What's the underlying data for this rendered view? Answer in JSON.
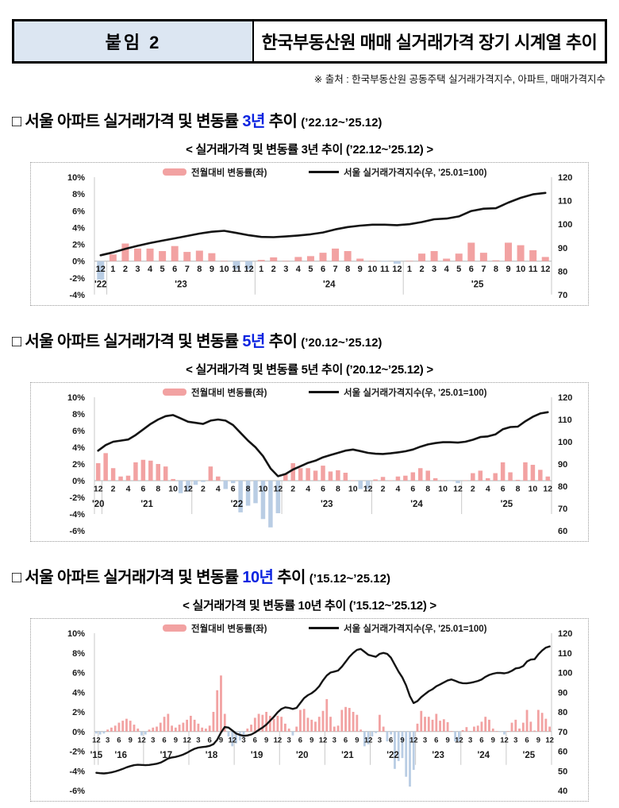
{
  "header": {
    "tag": "붙임 2",
    "title": "한국부동산원 매매 실거래가격 장기 시계열 추이"
  },
  "source_note": "※ 출처 : 한국부동산원 공동주택 실거래가격지수, 아파트, 매매가격지수",
  "colors": {
    "bar_positive": "#f2a2a2",
    "bar_negative": "#b9cde4",
    "line": "#141414",
    "highlight_blue": "#0b23e0",
    "header_cell_bg": "#dce6f2",
    "axis_text": "#1a1a1a",
    "grid": "#c9c9c9",
    "zero_line": "#b3b3b3"
  },
  "legend": {
    "bar_label": "전월대비 변동률(좌)",
    "line_label": "서울 실거래가격지수(우, '25.01=100)"
  },
  "sections": [
    {
      "heading": {
        "prefix": "□ 서울 아파트 실거래가격 및 변동률 ",
        "highlight": "3년",
        "suffix": " 추이 ",
        "range": "(’22.12~’25.12)"
      },
      "chart_title": "< 실거래가격 및 변동률 3년 추이 (’22.12~’25.12) >"
    },
    {
      "heading": {
        "prefix": "□ 서울 아파트 실거래가격 및 변동률 ",
        "highlight": "5년",
        "suffix": " 추이 ",
        "range": "(’20.12~’25.12)"
      },
      "chart_title": "< 실거래가격 및 변동률 5년 추이 (’20.12~’25.12) >"
    },
    {
      "heading": {
        "prefix": "□ 서울 아파트 실거래가격 및 변동률 ",
        "highlight": "10년",
        "suffix": " 추이 ",
        "range": "(’15.12~’25.12)"
      },
      "chart_title": "< 실거래가격 및 변동률 10년 추이 (’15.12~’25.12) >"
    }
  ],
  "chart_data": [
    {
      "type": "bar",
      "subtype": "bar+line combo",
      "title": "< 실거래가격 및 변동률 3년 추이 (’22.12~’25.12) >",
      "x_label_step": 1,
      "x_months": [
        12,
        1,
        2,
        3,
        4,
        5,
        6,
        7,
        8,
        9,
        10,
        11,
        12,
        1,
        2,
        3,
        4,
        5,
        6,
        7,
        8,
        9,
        10,
        11,
        12,
        1,
        2,
        3,
        4,
        5,
        6,
        7,
        8,
        9,
        10,
        11,
        12
      ],
      "year_groups": [
        {
          "label": "'22",
          "count": 1
        },
        {
          "label": "'23",
          "count": 12
        },
        {
          "label": "'24",
          "count": 12
        },
        {
          "label": "'25",
          "count": 12
        }
      ],
      "left_axis": {
        "min": -4,
        "max": 10,
        "ticks": [
          10,
          8,
          6,
          4,
          2,
          0,
          -2,
          -4
        ],
        "unit": "%"
      },
      "right_axis": {
        "min": 70,
        "max": 120,
        "ticks": [
          120,
          110,
          100,
          90,
          80,
          70
        ]
      },
      "series": [
        {
          "name": "전월대비 변동률(좌)",
          "type": "bar",
          "values": [
            -2.2,
            0.8,
            2.1,
            1.5,
            1.5,
            1.2,
            1.8,
            1.1,
            1.25,
            0.95,
            0.05,
            -1.0,
            -1.0,
            0.15,
            0.45,
            0.05,
            0.5,
            0.6,
            1.0,
            1.5,
            1.2,
            0.3,
            0.05,
            -0.05,
            -0.3,
            0.05,
            0.9,
            1.2,
            0.3,
            0.9,
            2.2,
            1.0,
            0.1,
            2.2,
            1.9,
            1.3,
            0.5
          ]
        },
        {
          "name": "서울 실거래가격지수(우, '25.01=100)",
          "type": "line",
          "values": [
            86.8,
            88,
            89.5,
            90.8,
            92,
            93,
            94,
            95,
            96,
            96.8,
            97.2,
            96.3,
            95.3,
            94.6,
            94.5,
            94.8,
            95.2,
            95.7,
            96.5,
            97.8,
            98.8,
            99.4,
            99.8,
            99.8,
            99.6,
            100,
            100.9,
            102.1,
            102.4,
            103.3,
            105.6,
            106.6,
            106.8,
            109.2,
            111.2,
            112.7,
            113.3
          ]
        }
      ]
    },
    {
      "type": "bar",
      "subtype": "bar+line combo",
      "title": "< 실거래가격 및 변동률 5년 추이 (’20.12~’25.12) >",
      "x_label_step": 2,
      "x_months": [
        12,
        1,
        2,
        3,
        4,
        5,
        6,
        7,
        8,
        9,
        10,
        11,
        12,
        1,
        2,
        3,
        4,
        5,
        6,
        7,
        8,
        9,
        10,
        11,
        12,
        1,
        2,
        3,
        4,
        5,
        6,
        7,
        8,
        9,
        10,
        11,
        12,
        1,
        2,
        3,
        4,
        5,
        6,
        7,
        8,
        9,
        10,
        11,
        12,
        1,
        2,
        3,
        4,
        5,
        6,
        7,
        8,
        9,
        10,
        11,
        12
      ],
      "year_groups": [
        {
          "label": "'20",
          "count": 1
        },
        {
          "label": "'21",
          "count": 12
        },
        {
          "label": "'22",
          "count": 12
        },
        {
          "label": "'23",
          "count": 12
        },
        {
          "label": "'24",
          "count": 12
        },
        {
          "label": "'25",
          "count": 12
        }
      ],
      "left_axis": {
        "min": -6,
        "max": 10,
        "ticks": [
          10,
          8,
          6,
          4,
          2,
          0,
          -2,
          -4,
          -6
        ],
        "unit": "%"
      },
      "right_axis": {
        "min": 60,
        "max": 120,
        "ticks": [
          120,
          110,
          100,
          90,
          80,
          70,
          60
        ]
      },
      "series": [
        {
          "name": "전월대비 변동률(좌)",
          "type": "bar",
          "values": [
            2.1,
            3.3,
            1.5,
            0.5,
            0.6,
            2.2,
            2.5,
            2.4,
            2.0,
            1.7,
            0.2,
            -1.5,
            -1.3,
            -0.5,
            -0.15,
            1.7,
            0.5,
            -1.0,
            -0.3,
            -3.8,
            -3.0,
            -2.7,
            -4.6,
            -5.6,
            -3.9,
            0.8,
            2.1,
            1.5,
            1.5,
            1.2,
            1.8,
            1.1,
            1.25,
            0.95,
            0.05,
            -1.0,
            -1.0,
            0.15,
            0.45,
            0.05,
            0.5,
            0.6,
            1.0,
            1.5,
            1.2,
            0.3,
            0.05,
            -0.05,
            -0.3,
            0.05,
            0.9,
            1.2,
            0.3,
            0.9,
            2.2,
            1.0,
            0.1,
            2.2,
            1.9,
            1.3,
            0.5
          ]
        },
        {
          "name": "서울 실거래가격지수(우, '25.01=100)",
          "type": "line",
          "values": [
            96,
            98.5,
            100,
            100.5,
            101,
            103,
            105.5,
            108,
            110,
            111.5,
            112,
            110.5,
            109,
            108.5,
            108,
            109.5,
            110,
            109.5,
            107.5,
            104,
            100.5,
            97.5,
            93.5,
            88,
            84.5,
            85.5,
            87.5,
            89,
            90.5,
            91.5,
            93,
            94,
            95,
            96,
            96.5,
            95.8,
            95,
            94.6,
            94.5,
            94.8,
            95.2,
            95.7,
            96.5,
            97.8,
            98.8,
            99.4,
            99.8,
            99.8,
            99.6,
            100,
            100.9,
            102.1,
            102.4,
            103.3,
            105.6,
            106.6,
            106.8,
            109.2,
            111.2,
            112.7,
            113.3
          ]
        }
      ]
    },
    {
      "type": "bar",
      "subtype": "bar+line combo",
      "title": "< 실거래가격 및 변동률 10년 추이 (’15.12~’25.12) >",
      "x_label_step": 3,
      "x_months": [
        12,
        1,
        2,
        3,
        4,
        5,
        6,
        7,
        8,
        9,
        10,
        11,
        12,
        1,
        2,
        3,
        4,
        5,
        6,
        7,
        8,
        9,
        10,
        11,
        12,
        1,
        2,
        3,
        4,
        5,
        6,
        7,
        8,
        9,
        10,
        11,
        12,
        1,
        2,
        3,
        4,
        5,
        6,
        7,
        8,
        9,
        10,
        11,
        12,
        1,
        2,
        3,
        4,
        5,
        6,
        7,
        8,
        9,
        10,
        11,
        12,
        1,
        2,
        3,
        4,
        5,
        6,
        7,
        8,
        9,
        10,
        11,
        12,
        1,
        2,
        3,
        4,
        5,
        6,
        7,
        8,
        9,
        10,
        11,
        12,
        1,
        2,
        3,
        4,
        5,
        6,
        7,
        8,
        9,
        10,
        11,
        12,
        1,
        2,
        3,
        4,
        5,
        6,
        7,
        8,
        9,
        10,
        11,
        12,
        1,
        2,
        3,
        4,
        5,
        6,
        7,
        8,
        9,
        10,
        11,
        12
      ],
      "year_groups": [
        {
          "label": "'15",
          "count": 1
        },
        {
          "label": "'16",
          "count": 12
        },
        {
          "label": "'17",
          "count": 12
        },
        {
          "label": "'18",
          "count": 12
        },
        {
          "label": "'19",
          "count": 12
        },
        {
          "label": "'20",
          "count": 12
        },
        {
          "label": "'21",
          "count": 12
        },
        {
          "label": "'22",
          "count": 12
        },
        {
          "label": "'23",
          "count": 12
        },
        {
          "label": "'24",
          "count": 12
        },
        {
          "label": "'25",
          "count": 12
        }
      ],
      "left_axis": {
        "min": -6,
        "max": 10,
        "ticks": [
          10,
          8,
          6,
          4,
          2,
          0,
          -2,
          -4,
          -6
        ],
        "unit": "%"
      },
      "right_axis": {
        "min": 40,
        "max": 120,
        "ticks": [
          120,
          110,
          100,
          90,
          80,
          70,
          60,
          50,
          40
        ]
      },
      "series": [
        {
          "name": "전월대비 변동률(좌)",
          "type": "bar",
          "values": [
            -0.2,
            -0.3,
            -0.2,
            0.2,
            0.4,
            0.6,
            0.9,
            1.1,
            1.3,
            1.1,
            0.7,
            0.3,
            -0.4,
            -0.3,
            0.2,
            0.4,
            0.5,
            0.9,
            1.5,
            1.8,
            0.6,
            0.4,
            0.7,
            0.9,
            1.2,
            1.6,
            1.2,
            0.8,
            0.4,
            0.3,
            0.6,
            2.0,
            4.2,
            5.7,
            1.8,
            -0.5,
            -1.5,
            -1.2,
            -0.9,
            -0.6,
            0.3,
            0.7,
            1.4,
            1.8,
            1.7,
            2.0,
            1.6,
            1.3,
            1.6,
            1.5,
            0.8,
            0.3,
            -0.4,
            0.5,
            2.2,
            2.3,
            1.4,
            1.2,
            1.0,
            1.5,
            2.1,
            3.3,
            1.5,
            0.5,
            0.6,
            2.2,
            2.5,
            2.4,
            2.0,
            1.7,
            0.2,
            -1.5,
            -1.3,
            -0.5,
            -0.15,
            1.7,
            0.5,
            -1.0,
            -0.3,
            -3.8,
            -3.0,
            -2.7,
            -4.6,
            -5.6,
            -3.9,
            0.8,
            2.1,
            1.5,
            1.5,
            1.2,
            1.8,
            1.1,
            1.25,
            0.95,
            0.05,
            -1.0,
            -1.0,
            0.15,
            0.45,
            0.05,
            0.5,
            0.6,
            1.0,
            1.5,
            1.2,
            0.3,
            0.05,
            -0.05,
            -0.3,
            0.05,
            0.9,
            1.2,
            0.3,
            0.9,
            2.2,
            1.0,
            0.1,
            2.2,
            1.9,
            1.3,
            0.5
          ]
        },
        {
          "name": "서울 실거래가격지수(우, '25.01=100)",
          "type": "line",
          "values": [
            49,
            48.8,
            48.7,
            48.9,
            49.2,
            49.7,
            50.3,
            51.0,
            51.8,
            52.4,
            52.9,
            53.1,
            53.0,
            52.9,
            53.0,
            53.3,
            53.6,
            54.2,
            55.2,
            56.3,
            56.8,
            57.1,
            57.6,
            58.3,
            59.2,
            60.3,
            61.2,
            61.8,
            62.1,
            62.3,
            62.7,
            63.6,
            65.8,
            69.5,
            72.3,
            72.0,
            70.5,
            69.0,
            68.3,
            67.8,
            68.0,
            68.5,
            69.5,
            70.8,
            72.0,
            73.5,
            75.5,
            77.5,
            79.8,
            81.5,
            82.3,
            82.0,
            81.5,
            82.0,
            84.5,
            87.0,
            88.5,
            89.5,
            91.0,
            93.0,
            96,
            98.5,
            100,
            100.5,
            101,
            103,
            105.5,
            108,
            110,
            111.5,
            112,
            110.5,
            109,
            108.5,
            108,
            109.5,
            110,
            109.5,
            107.5,
            104,
            100.5,
            97.5,
            93.5,
            88,
            84.5,
            85.5,
            87.5,
            89,
            90.5,
            91.5,
            93,
            94,
            95,
            96,
            96.5,
            95.8,
            95,
            94.6,
            94.5,
            94.8,
            95.2,
            95.7,
            96.5,
            97.8,
            98.8,
            99.4,
            99.8,
            99.8,
            99.6,
            100,
            100.9,
            102.1,
            102.4,
            103.3,
            105.6,
            106.6,
            106.8,
            109.2,
            111.2,
            112.7,
            113.3
          ]
        }
      ]
    }
  ]
}
